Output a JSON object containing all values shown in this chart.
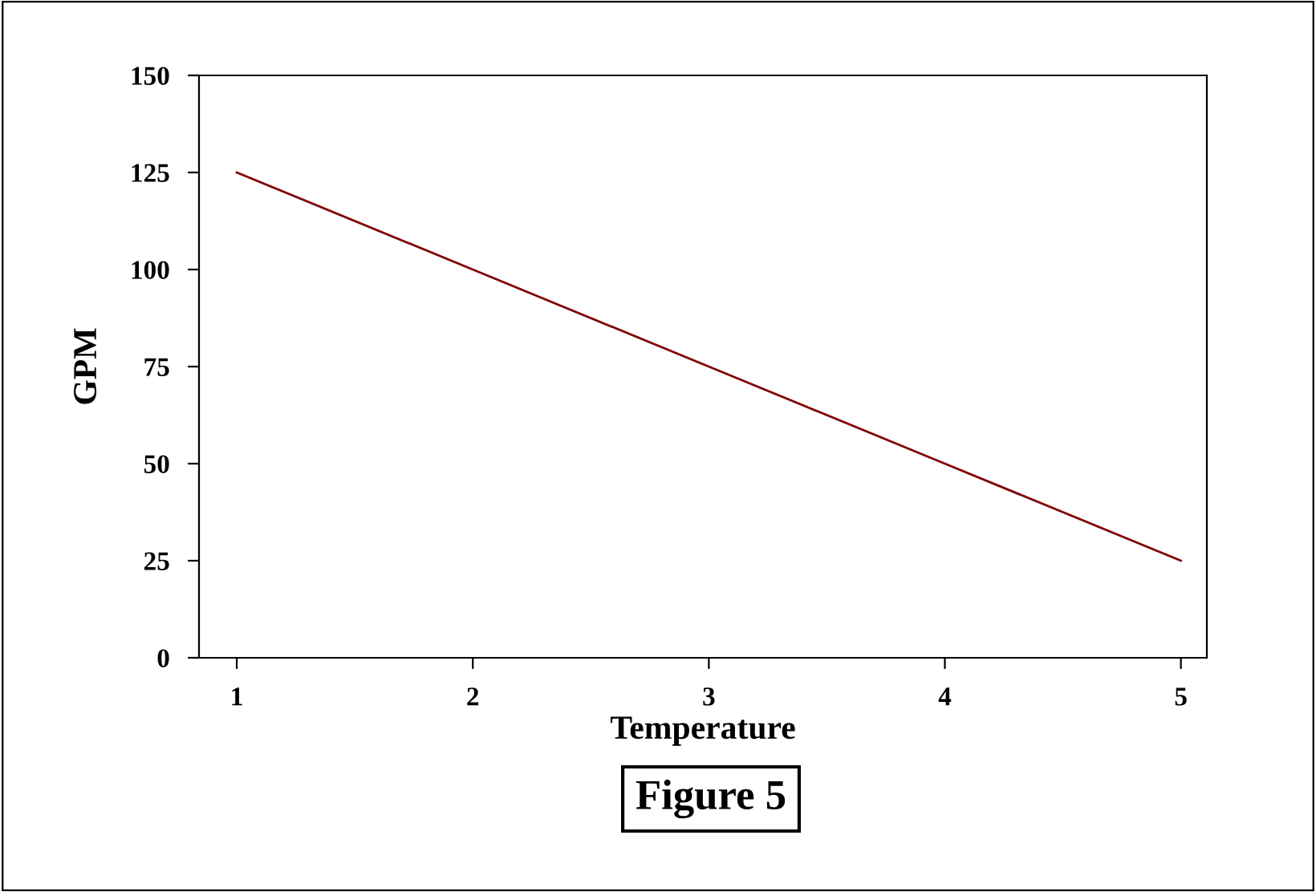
{
  "chart_data": {
    "type": "line",
    "xlabel": "Temperature",
    "ylabel": "GPM",
    "x": [
      1,
      2,
      3,
      4,
      5
    ],
    "series": [
      {
        "color": "#800000",
        "values": [
          125,
          100,
          75,
          50,
          25
        ]
      }
    ],
    "xlim": [
      0.84,
      5.11
    ],
    "xticks": [
      1,
      2,
      3,
      4,
      5
    ],
    "ylim": [
      0,
      150
    ],
    "yticks": [
      0,
      25,
      50,
      75,
      100,
      125,
      150
    ],
    "annotations": [
      "Figure 5"
    ]
  }
}
